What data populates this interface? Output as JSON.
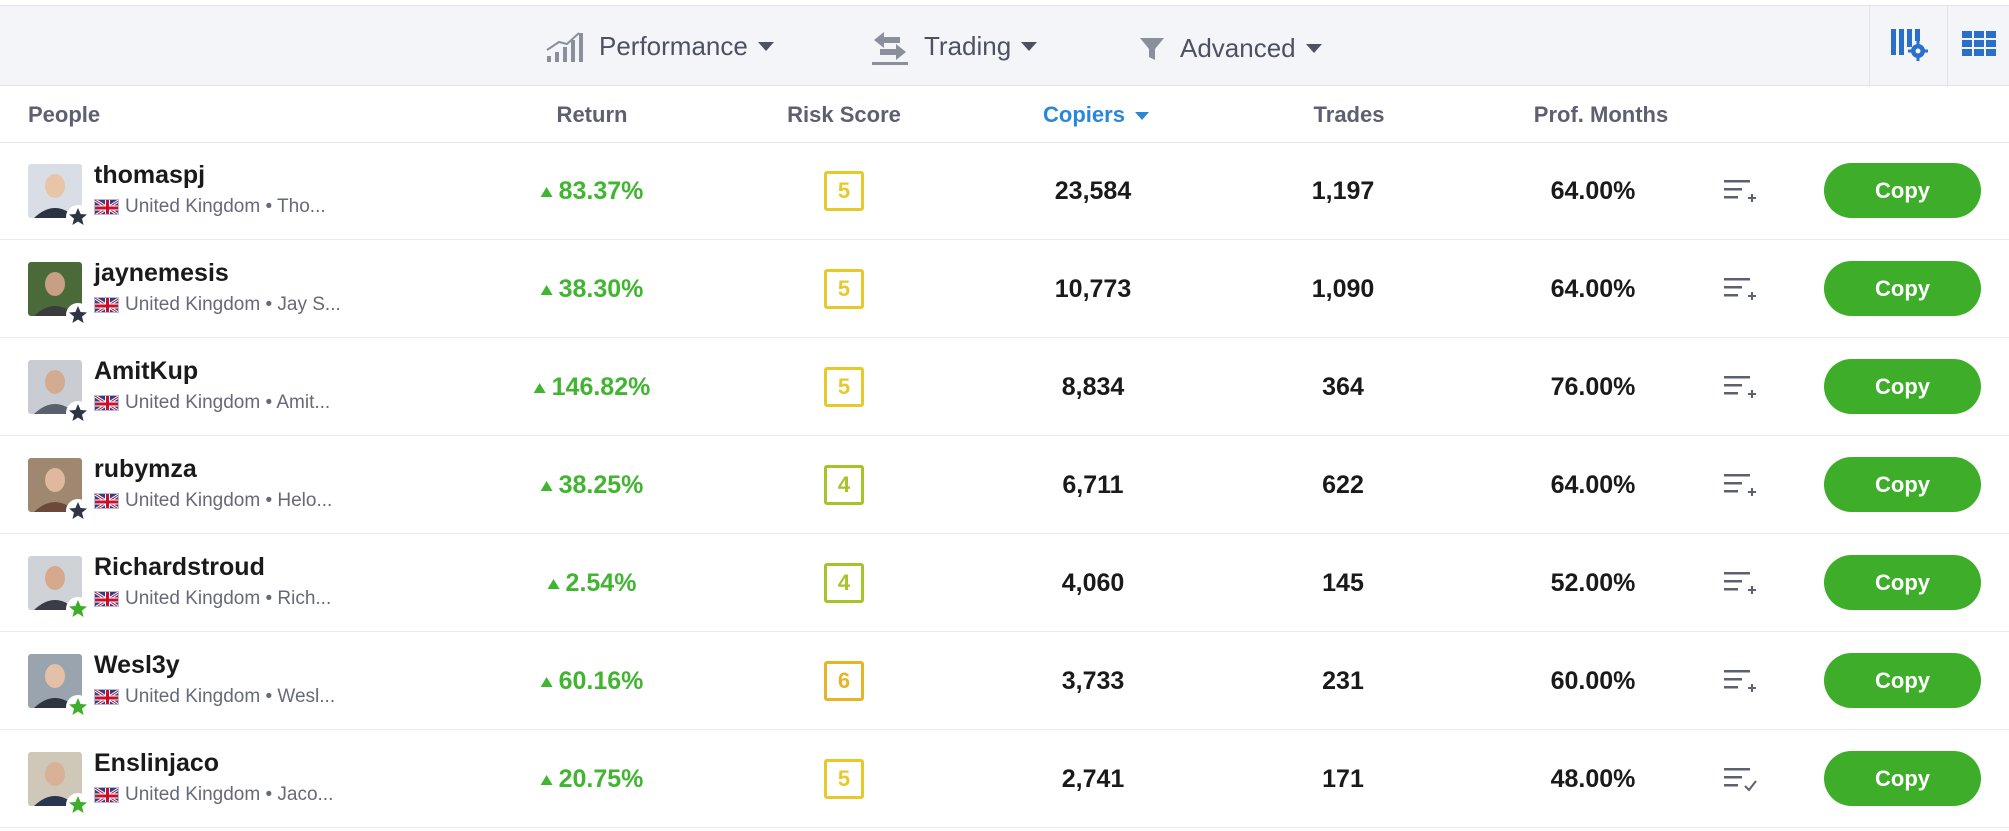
{
  "filters": [
    {
      "label": "Performance",
      "icon": "bar-chart-icon"
    },
    {
      "label": "Trading",
      "icon": "swap-arrows-icon"
    },
    {
      "label": "Advanced",
      "icon": "funnel-icon"
    }
  ],
  "tools": {
    "settings_icon": "column-settings-icon",
    "grid_icon": "grid-view-icon"
  },
  "columns": {
    "people": "People",
    "return": "Return",
    "risk": "Risk Score",
    "copiers": "Copiers",
    "trades": "Trades",
    "prof_months": "Prof. Months"
  },
  "colors": {
    "accent_blue": "#2a87d8",
    "positive_green": "#41b531",
    "copy_button": "#3eae2a",
    "risk_yellow": "#e9c92a",
    "risk_lime": "#a7c32a",
    "risk_orange": "#e6b424"
  },
  "rows": [
    {
      "username": "thomaspj",
      "meta": "United Kingdom • Tho...",
      "return": "83.37%",
      "risk": "5",
      "copiers": "23,584",
      "trades": "1,197",
      "prof_months": "64.00%",
      "badge": "dark-star",
      "watch": "add-to-watchlist-icon",
      "copy": "Copy"
    },
    {
      "username": "jaynemesis",
      "meta": "United Kingdom • Jay S...",
      "return": "38.30%",
      "risk": "5",
      "copiers": "10,773",
      "trades": "1,090",
      "prof_months": "64.00%",
      "badge": "dark-star",
      "watch": "add-to-watchlist-icon",
      "copy": "Copy"
    },
    {
      "username": "AmitKup",
      "meta": "United Kingdom • Amit...",
      "return": "146.82%",
      "risk": "5",
      "copiers": "8,834",
      "trades": "364",
      "prof_months": "76.00%",
      "badge": "dark-star",
      "watch": "add-to-watchlist-icon",
      "copy": "Copy"
    },
    {
      "username": "rubymza",
      "meta": "United Kingdom • Helo...",
      "return": "38.25%",
      "risk": "4",
      "copiers": "6,711",
      "trades": "622",
      "prof_months": "64.00%",
      "badge": "dark-star",
      "watch": "add-to-watchlist-icon",
      "copy": "Copy"
    },
    {
      "username": "Richardstroud",
      "meta": "United Kingdom • Rich...",
      "return": "2.54%",
      "risk": "4",
      "copiers": "4,060",
      "trades": "145",
      "prof_months": "52.00%",
      "badge": "green-star",
      "watch": "add-to-watchlist-icon",
      "copy": "Copy"
    },
    {
      "username": "Wesl3y",
      "meta": "United Kingdom • Wesl...",
      "return": "60.16%",
      "risk": "6",
      "copiers": "3,733",
      "trades": "231",
      "prof_months": "60.00%",
      "badge": "green-star",
      "watch": "add-to-watchlist-icon",
      "copy": "Copy"
    },
    {
      "username": "Enslinjaco",
      "meta": "United Kingdom • Jaco...",
      "return": "20.75%",
      "risk": "5",
      "copiers": "2,741",
      "trades": "171",
      "prof_months": "48.00%",
      "badge": "green-star",
      "watch": "in-watchlist-icon",
      "copy": "Copy"
    }
  ]
}
